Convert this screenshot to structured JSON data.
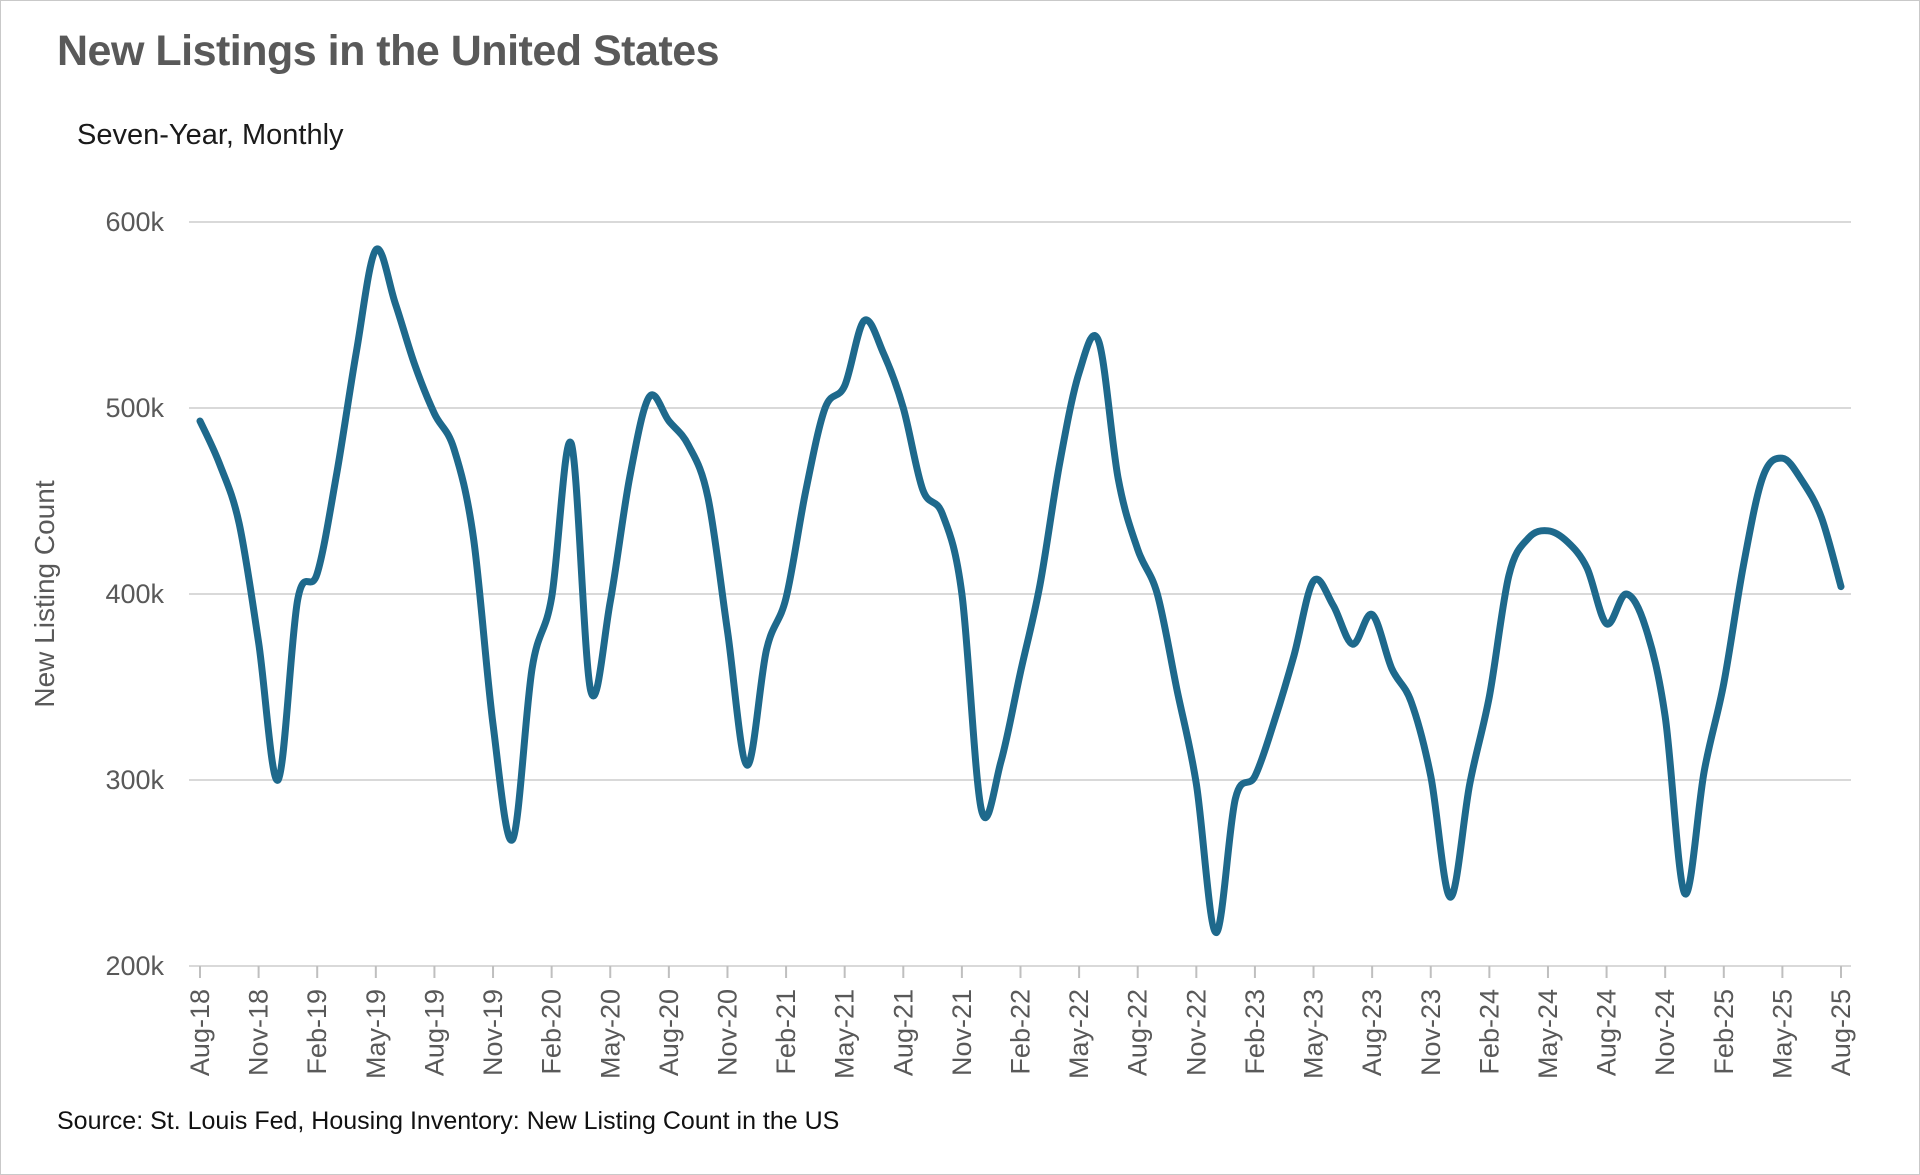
{
  "header": {
    "title": "New Listings in the United States",
    "subtitle": "Seven-Year, Monthly"
  },
  "source_note": "Source: St. Louis Fed, Housing Inventory: New Listing Count in the US",
  "chart_data": {
    "type": "line",
    "title": "New Listings in the United States",
    "subtitle": "Seven-Year, Monthly",
    "xlabel": "",
    "ylabel": "New Listing Count",
    "units": "thousands",
    "ylim": [
      200,
      620
    ],
    "y_ticks": [
      200,
      300,
      400,
      500,
      600
    ],
    "y_tick_labels": [
      "200k",
      "300k",
      "400k",
      "500k",
      "600k"
    ],
    "x_tick_every": 3,
    "legend": "none",
    "grid": "horizontal",
    "line_color": "#1e698c",
    "x": [
      "Aug-18",
      "Sep-18",
      "Oct-18",
      "Nov-18",
      "Dec-18",
      "Jan-19",
      "Feb-19",
      "Mar-19",
      "Apr-19",
      "May-19",
      "Jun-19",
      "Jul-19",
      "Aug-19",
      "Sep-19",
      "Oct-19",
      "Nov-19",
      "Dec-19",
      "Jan-20",
      "Feb-20",
      "Mar-20",
      "Apr-20",
      "May-20",
      "Jun-20",
      "Jul-20",
      "Aug-20",
      "Sep-20",
      "Oct-20",
      "Nov-20",
      "Dec-20",
      "Jan-21",
      "Feb-21",
      "Mar-21",
      "Apr-21",
      "May-21",
      "Jun-21",
      "Jul-21",
      "Aug-21",
      "Sep-21",
      "Oct-21",
      "Nov-21",
      "Dec-21",
      "Jan-22",
      "Feb-22",
      "Mar-22",
      "Apr-22",
      "May-22",
      "Jun-22",
      "Jul-22",
      "Aug-22",
      "Sep-22",
      "Oct-22",
      "Nov-22",
      "Dec-22",
      "Jan-23",
      "Feb-23",
      "Mar-23",
      "Apr-23",
      "May-23",
      "Jun-23",
      "Jul-23",
      "Aug-23",
      "Sep-23",
      "Oct-23",
      "Nov-23",
      "Dec-23",
      "Jan-24",
      "Feb-24",
      "Mar-24",
      "Apr-24",
      "May-24",
      "Jun-24",
      "Jul-24",
      "Aug-24",
      "Sep-24",
      "Oct-24",
      "Nov-24",
      "Dec-24",
      "Jan-25",
      "Feb-25",
      "Mar-25",
      "Apr-25",
      "May-25",
      "Jun-25",
      "Jul-25",
      "Aug-25"
    ],
    "series": [
      {
        "name": "New Listing Count",
        "values": [
          493,
          470,
          438,
          374,
          300,
          397,
          411,
          465,
          530,
          585,
          556,
          523,
          497,
          478,
          430,
          330,
          268,
          360,
          398,
          481,
          348,
          396,
          463,
          506,
          493,
          480,
          452,
          380,
          308,
          370,
          398,
          455,
          500,
          512,
          547,
          529,
          500,
          456,
          443,
          400,
          284,
          310,
          358,
          405,
          470,
          519,
          536,
          462,
          424,
          400,
          349,
          298,
          218,
          290,
          302,
          332,
          367,
          407,
          394,
          373,
          389,
          360,
          342,
          302,
          237,
          298,
          345,
          410,
          430,
          434,
          428,
          414,
          384,
          400,
          382,
          334,
          239,
          305,
          352,
          415,
          463,
          473,
          461,
          441,
          404
        ]
      }
    ]
  },
  "plot_geometry_note": "values are thousands of listings"
}
